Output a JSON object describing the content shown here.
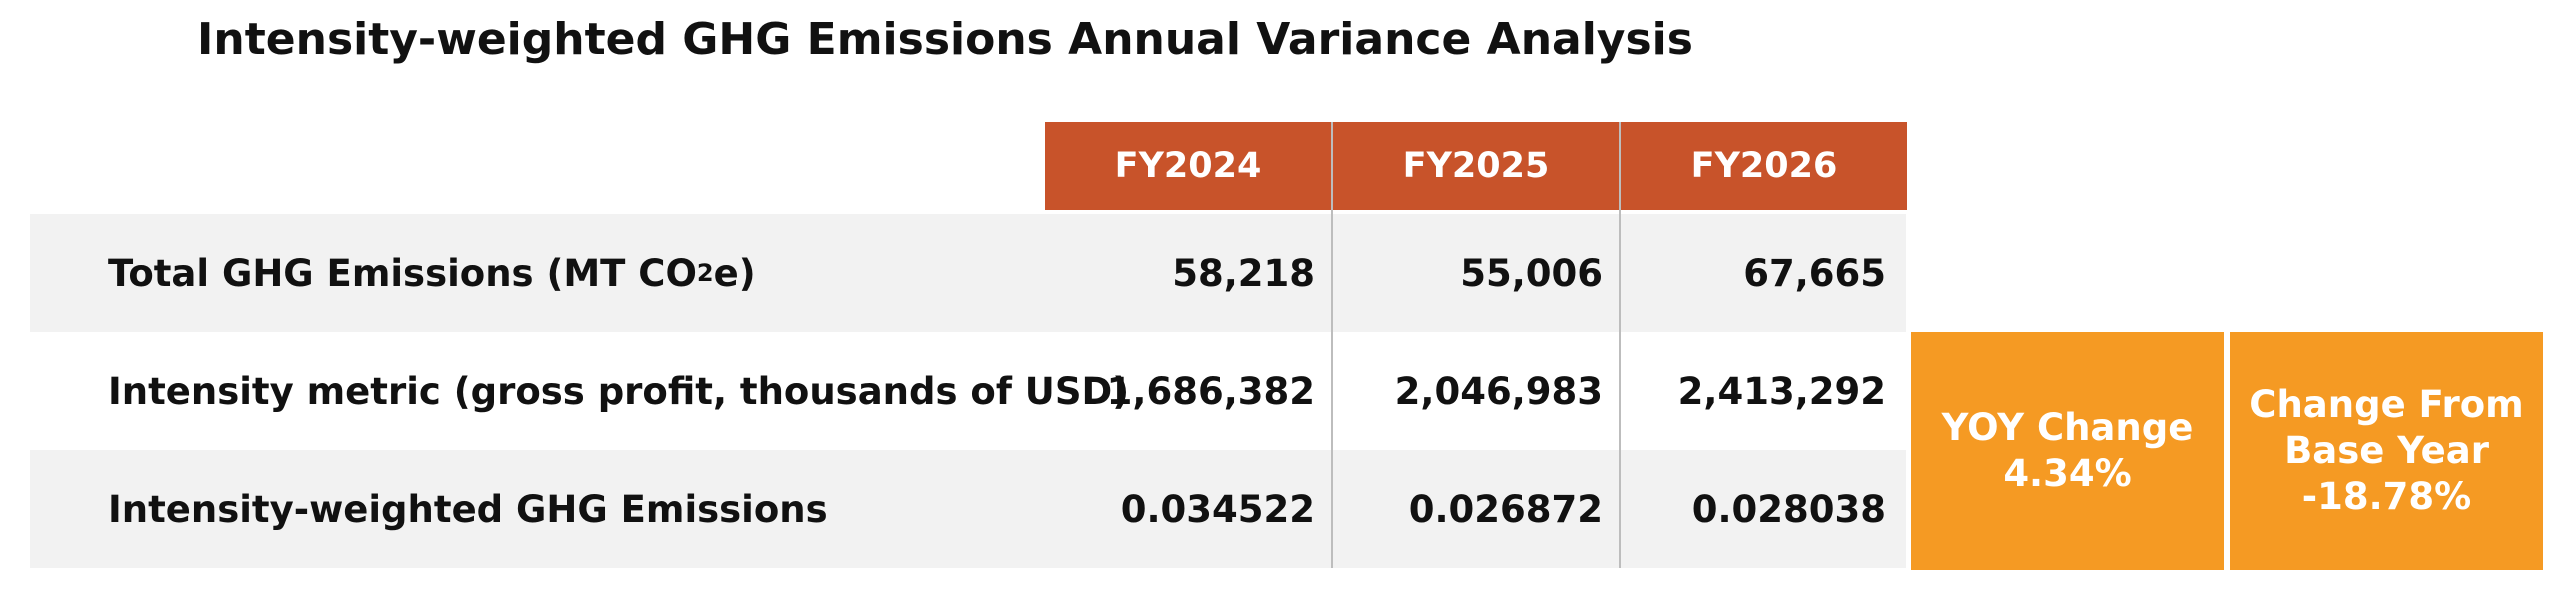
{
  "title": "Intensity-weighted GHG Emissions Annual Variance Analysis",
  "columns": [
    "FY2024",
    "FY2025",
    "FY2026"
  ],
  "rows": [
    {
      "label_main": "Total GHG Emissions (MT CO",
      "label_sub": "2",
      "label_tail": "e)",
      "values": [
        "58,218",
        "55,006",
        "67,665"
      ]
    },
    {
      "label": "Intensity metric (gross profit, thousands of USD)",
      "values": [
        "1,686,382",
        "2,046,983",
        "2,413,292"
      ]
    },
    {
      "label": "Intensity-weighted GHG Emissions",
      "values": [
        "0.034522",
        "0.026872",
        "0.028038"
      ]
    }
  ],
  "yoy": {
    "title": "YOY Change",
    "value": "4.34%"
  },
  "base": {
    "title_line1": "Change From",
    "title_line2": "Base Year",
    "value": "-18.78%"
  },
  "colors": {
    "header_bg": "#c8532a",
    "kpi_bg": "#f59a23",
    "row_shade": "#f2f2f2"
  }
}
